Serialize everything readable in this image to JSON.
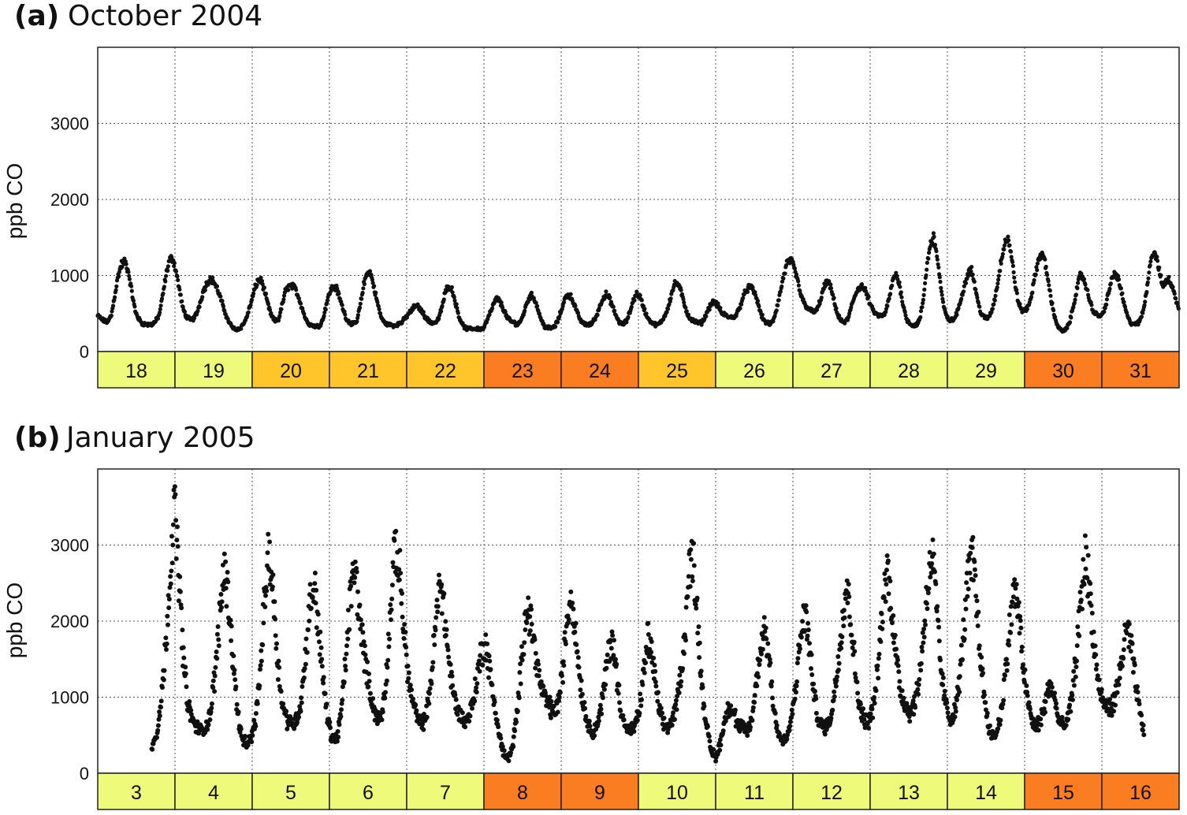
{
  "chart_data": [
    {
      "type": "scatter",
      "panel_letter": "(a)",
      "title": "October 2004",
      "ylabel": "ppb CO",
      "ylim": [
        0,
        4000
      ],
      "yticks": [
        0,
        1000,
        2000,
        3000
      ],
      "grid": true,
      "days": [
        {
          "label": "18",
          "color": "#EEFA7A"
        },
        {
          "label": "19",
          "color": "#EEFA7A"
        },
        {
          "label": "20",
          "color": "#FFC52A"
        },
        {
          "label": "21",
          "color": "#FFC52A"
        },
        {
          "label": "22",
          "color": "#FFC52A"
        },
        {
          "label": "23",
          "color": "#FB7D22"
        },
        {
          "label": "24",
          "color": "#FB7D22"
        },
        {
          "label": "25",
          "color": "#FFC52A"
        },
        {
          "label": "26",
          "color": "#EEFA7A"
        },
        {
          "label": "27",
          "color": "#EEFA7A"
        },
        {
          "label": "28",
          "color": "#EEFA7A"
        },
        {
          "label": "29",
          "color": "#EEFA7A"
        },
        {
          "label": "30",
          "color": "#FB7D22"
        },
        {
          "label": "31",
          "color": "#FB7D22"
        }
      ],
      "series": [
        {
          "values": [
            470,
            430,
            400,
            390,
            480,
            740,
            1000,
            1150,
            1180,
            1050,
            780,
            530,
            430,
            370,
            360,
            350,
            360,
            400,
            480,
            720,
            1000,
            1200,
            1230,
            1050,
            800,
            560,
            460,
            420,
            430,
            500,
            640,
            800,
            900,
            960,
            920,
            830,
            700,
            560,
            430,
            350,
            300,
            290,
            320,
            380,
            500,
            650,
            820,
            940,
            930,
            780,
            600,
            460,
            400,
            420,
            600,
            790,
            860,
            860,
            820,
            700,
            560,
            420,
            360,
            340,
            330,
            340,
            420,
            620,
            780,
            860,
            830,
            690,
            550,
            420,
            380,
            360,
            400,
            620,
            880,
            1050,
            1030,
            840,
            640,
            460,
            380,
            360,
            350,
            340,
            360,
            380,
            430,
            490,
            540,
            600,
            590,
            530,
            460,
            400,
            380,
            380,
            440,
            600,
            800,
            870,
            800,
            620,
            450,
            350,
            300,
            300,
            300,
            300,
            300,
            300,
            400,
            500,
            620,
            700,
            650,
            550,
            450,
            400,
            380,
            360,
            400,
            520,
            670,
            740,
            700,
            560,
            420,
            330,
            310,
            310,
            330,
            420,
            560,
            700,
            760,
            700,
            580,
            460,
            380,
            360,
            350,
            380,
            450,
            570,
            700,
            750,
            700,
            580,
            460,
            380,
            360,
            400,
            520,
            680,
            760,
            720,
            580,
            460,
            400,
            360,
            350,
            380,
            450,
            560,
            720,
            880,
            900,
            780,
            620,
            480,
            420,
            390,
            380,
            380,
            450,
            560,
            640,
            650,
            590,
            500,
            480,
            450,
            450,
            470,
            560,
            690,
            800,
            850,
            820,
            720,
            560,
            430,
            380,
            360,
            400,
            560,
            760,
            980,
            1150,
            1200,
            1120,
            960,
            760,
            640,
            580,
            540,
            520,
            560,
            700,
            860,
            920,
            820,
            640,
            470,
            400,
            380,
            440,
            600,
            740,
            840,
            860,
            800,
            680,
            560,
            500,
            470,
            460,
            520,
            700,
            920,
            1030,
            880,
            640,
            440,
            370,
            340,
            350,
            420,
            680,
            1100,
            1400,
            1500,
            1280,
            900,
            580,
            440,
            410,
            420,
            520,
            680,
            860,
            1020,
            1100,
            900,
            650,
            500,
            440,
            440,
            520,
            700,
            950,
            1250,
            1450,
            1480,
            1200,
            870,
            620,
            540,
            540,
            620,
            800,
            1050,
            1250,
            1280,
            1100,
            820,
            560,
            380,
            290,
            270,
            300,
            400,
            600,
            820,
            1000,
            970,
            800,
            640,
            520,
            480,
            470,
            520,
            720,
            900,
            1030,
            980,
            800,
            600,
            440,
            370,
            360,
            370,
            460,
            650,
            1000,
            1280,
            1300,
            1100,
            880,
            900,
            950,
            860,
            680,
            560
          ]
        }
      ]
    },
    {
      "type": "scatter",
      "panel_letter": "(b)",
      "title": "January 2005",
      "ylabel": "ppb CO",
      "ylim": [
        0,
        4000
      ],
      "yticks": [
        0,
        1000,
        2000,
        3000
      ],
      "grid": true,
      "days": [
        {
          "label": "3",
          "color": "#EEFA7A"
        },
        {
          "label": "4",
          "color": "#EEFA7A"
        },
        {
          "label": "5",
          "color": "#EEFA7A"
        },
        {
          "label": "6",
          "color": "#EEFA7A"
        },
        {
          "label": "7",
          "color": "#EEFA7A"
        },
        {
          "label": "8",
          "color": "#FB7D22"
        },
        {
          "label": "9",
          "color": "#FB7D22"
        },
        {
          "label": "10",
          "color": "#EEFA7A"
        },
        {
          "label": "11",
          "color": "#EEFA7A"
        },
        {
          "label": "12",
          "color": "#EEFA7A"
        },
        {
          "label": "13",
          "color": "#EEFA7A"
        },
        {
          "label": "14",
          "color": "#EEFA7A"
        },
        {
          "label": "15",
          "color": "#FB7D22"
        },
        {
          "label": "16",
          "color": "#FB7D22"
        }
      ],
      "series": [
        {
          "x_start": 0.7,
          "x_end": 13.55,
          "values": [
            350,
            500,
            900,
            1600,
            2600,
            3500,
            2600,
            1500,
            900,
            700,
            600,
            550,
            600,
            800,
            1300,
            2000,
            2700,
            2300,
            1500,
            800,
            450,
            380,
            450,
            700,
            1300,
            2300,
            2950,
            2300,
            1400,
            900,
            700,
            650,
            700,
            900,
            1500,
            2200,
            2500,
            1900,
            1200,
            700,
            450,
            450,
            800,
            1500,
            2300,
            2700,
            2100,
            1600,
            1200,
            900,
            700,
            750,
            1300,
            2200,
            3000,
            2600,
            1800,
            1200,
            900,
            700,
            650,
            800,
            1300,
            2000,
            2600,
            2000,
            1400,
            1000,
            800,
            700,
            700,
            900,
            1200,
            1600,
            1700,
            1300,
            900,
            500,
            250,
            200,
            350,
            800,
            1500,
            2200,
            2000,
            1600,
            1200,
            1000,
            900,
            800,
            900,
            1300,
            2000,
            2400,
            1800,
            1200,
            800,
            600,
            550,
            700,
            1000,
            1500,
            1800,
            1300,
            850,
            600,
            550,
            600,
            800,
            1300,
            1800,
            1500,
            1000,
            700,
            600,
            650,
            800,
            1200,
            1700,
            2600,
            2900,
            2000,
            1100,
            600,
            300,
            200,
            400,
            700,
            900,
            800,
            600,
            600,
            550,
            700,
            1200,
            1700,
            1900,
            1400,
            800,
            500,
            400,
            500,
            800,
            1300,
            1900,
            2100,
            1500,
            950,
            650,
            600,
            650,
            900,
            1400,
            2000,
            2500,
            2000,
            1300,
            850,
            700,
            700,
            900,
            1400,
            2200,
            2700,
            2200,
            1500,
            1100,
            900,
            800,
            900,
            1200,
            1800,
            2500,
            2900,
            2100,
            1300,
            900,
            700,
            800,
            1200,
            1900,
            2600,
            2800,
            2100,
            1300,
            800,
            500,
            500,
            700,
            1200,
            1800,
            2400,
            2200,
            1500,
            1000,
            700,
            600,
            700,
            900,
            1200,
            1000,
            700,
            600,
            700,
            1000,
            1600,
            2300,
            2900,
            2300,
            1600,
            1100,
            900,
            850,
            900,
            1100,
            1500,
            1900,
            1700,
            1200,
            800,
            500
          ]
        }
      ]
    }
  ]
}
